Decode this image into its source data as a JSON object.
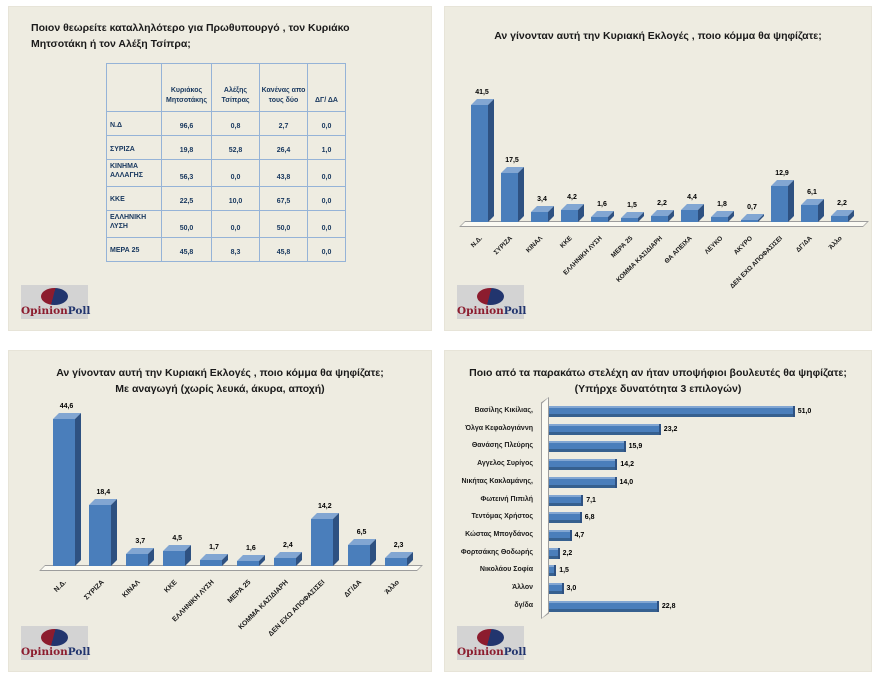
{
  "brand": {
    "name_primary": "Opinion",
    "name_secondary": "Poll"
  },
  "colors": {
    "panel_bg": "#eeece1",
    "bar_front": "#4a7ebb",
    "bar_top": "#82a6d2",
    "bar_side": "#2e5181",
    "floor": "#fbfaf3",
    "floor_border": "#9d9d9d",
    "table_border": "#95b3d7",
    "table_text": "#17375e",
    "logo_red": "#8c1c2e",
    "logo_blue": "#22356e",
    "logo_bg": "#d3d3d3"
  },
  "chart_data": [
    {
      "type": "table",
      "title": "Ποιον θεωρείτε καταλληλότερο για Πρωθυπουργό , τον Κυριάκο Μητσοτάκη ή τον Αλέξη Τσίπρα;",
      "columns": [
        "Κυριάκος Μητσοτάκης",
        "Αλέξης Τσίπρας",
        "Κανένας απο τους δύο",
        "ΔΓ/ ΔΑ"
      ],
      "rows": [
        {
          "label": "Ν.Δ",
          "values": [
            96.6,
            0.8,
            2.7,
            0.0
          ]
        },
        {
          "label": "ΣΥΡΙΖΑ",
          "values": [
            19.8,
            52.8,
            26.4,
            1.0
          ]
        },
        {
          "label": "ΚΙΝΗΜΑ ΑΛΛΑΓΗΣ",
          "values": [
            56.3,
            0.0,
            43.8,
            0.0
          ]
        },
        {
          "label": "ΚΚΕ",
          "values": [
            22.5,
            10.0,
            67.5,
            0.0
          ]
        },
        {
          "label": "ΕΛΛΗΝΙΚΗ ΛΥΣΗ",
          "values": [
            50.0,
            0.0,
            50.0,
            0.0
          ]
        },
        {
          "label": "ΜΕΡΑ 25",
          "values": [
            45.8,
            8.3,
            45.8,
            0.0
          ]
        }
      ],
      "value_format": "one-decimal-comma"
    },
    {
      "type": "bar",
      "style": "3d-column",
      "title": "Αν γίνονταν αυτή την Κυριακή Εκλογές , ποιο κόμμα θα ψηφίζατε;",
      "categories": [
        "Ν.Δ.",
        "ΣΥΡΙΖΑ",
        "ΚΙΝΑΛ",
        "ΚΚΕ",
        "ΕΛΛΗΝΙΚΗ ΛΥΣΗ",
        "ΜΕΡΑ 25",
        "ΚΟΜΜΑ ΚΑΣΙΔΙΑΡΗ",
        "ΘΑ ΑΠΕΙΧΑ",
        "ΛΕΥΚΟ",
        "ΑΚΥΡΟ",
        "ΔΕΝ ΕΧΩ ΑΠΟΦΑΣΙΣΕΙ",
        "ΔΓ/ΔΑ",
        "Άλλο"
      ],
      "values": [
        41.5,
        17.5,
        3.4,
        4.2,
        1.6,
        1.5,
        2.2,
        4.4,
        1.8,
        0.7,
        12.9,
        6.1,
        2.2
      ],
      "data_labels": true,
      "ylim": [
        0,
        45
      ],
      "grid": false,
      "legend": "none"
    },
    {
      "type": "bar",
      "style": "3d-column",
      "title": "Αν γίνονταν αυτή την Κυριακή Εκλογές , ποιο κόμμα θα ψηφίζατε;",
      "subtitle": "Με αναγωγή (χωρίς λευκά, άκυρα, αποχή)",
      "categories": [
        "Ν.Δ.",
        "ΣΥΡΙΖΑ",
        "ΚΙΝΑΛ",
        "ΚΚΕ",
        "ΕΛΛΗΝΙΚΗ ΛΥΣΗ",
        "ΜΕΡΑ 25",
        "ΚΟΜΜΑ ΚΑΣΙΔΙΑΡΗ",
        "ΔΕΝ ΕΧΩ ΑΠΟΦΑΣΙΣΕΙ",
        "ΔΓ/ΔΑ",
        "Άλλο"
      ],
      "values": [
        44.6,
        18.4,
        3.7,
        4.5,
        1.7,
        1.6,
        2.4,
        14.2,
        6.5,
        2.3
      ],
      "data_labels": true,
      "ylim": [
        0,
        48
      ],
      "grid": false,
      "legend": "none"
    },
    {
      "type": "bar",
      "orientation": "horizontal",
      "style": "3d-bar",
      "title": "Ποιο από τα παρακάτω στελέχη αν ήταν υποψήφιοι βουλευτές θα ψηφίζατε;",
      "subtitle": "(Υπήρχε δυνατότητα 3 επιλογών)",
      "categories": [
        "Βασίλης Κικίλιας,",
        "Όλγα Κεφαλογιάννη",
        "Θανάσης Πλεύρης",
        "Αγγελος Συρίγος",
        "Νικήτας Κακλαμάνης,",
        "Φωτεινή Πιπιλή",
        "Τεντόμας Χρήστος",
        "Κώστας Μπογδάνος",
        "Φορτσάκης Θοδωρής",
        "Νικολάου Σοφία",
        "Άλλον",
        "δγ/δα"
      ],
      "values": [
        51.0,
        23.2,
        15.9,
        14.2,
        14.0,
        7.1,
        6.8,
        4.7,
        2.2,
        1.5,
        3.0,
        22.8
      ],
      "data_labels": true,
      "xlim": [
        0,
        55
      ],
      "grid": false,
      "legend": "none"
    }
  ]
}
